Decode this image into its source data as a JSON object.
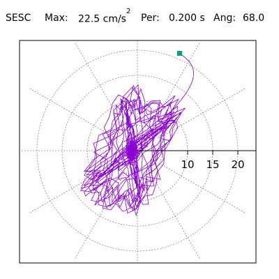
{
  "header": {
    "station": "SESC",
    "max_label": "Max:",
    "max_value": "22.5 cm/s",
    "max_exp": "2",
    "per_label": "Per:",
    "per_value": "0.200 s",
    "ang_label": "Ang:",
    "ang_value": "68.0"
  },
  "chart_data": {
    "type": "scatter",
    "description_of_marks": "particle-motion trace in polar grid",
    "ticks": [
      "10",
      "15",
      "20"
    ],
    "rings": [
      5,
      10,
      15,
      20
    ],
    "axis_range": [
      -25,
      25
    ],
    "max_value": 22.5,
    "angle_deg": 68.0,
    "trace_color": "#8a00d4",
    "marker_color": "#00a080",
    "grid": true
  }
}
